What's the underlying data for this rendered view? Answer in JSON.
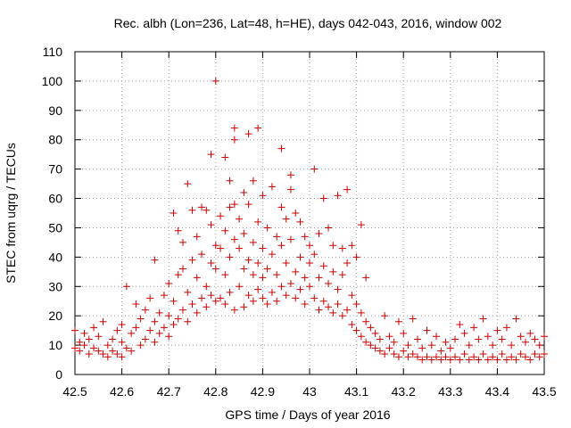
{
  "chart_data": {
    "type": "scatter",
    "title": "Rec. albh (Lon=236, Lat=48, h=HE), days 042-043, 2016, window 002",
    "xlabel": "GPS time / Days of year 2016",
    "ylabel": "STEC from uqrg / TECUs",
    "xlim": [
      42.5,
      43.5
    ],
    "ylim": [
      0,
      110
    ],
    "grid": true,
    "marker": "+",
    "series_color": "#cc0000",
    "x_ticks": [
      42.5,
      42.6,
      42.7,
      42.8,
      42.9,
      43,
      43.1,
      43.2,
      43.3,
      43.4,
      43.5
    ],
    "x_tick_labels": [
      "42.5",
      "42.6",
      "42.7",
      "42.8",
      "42.9",
      "43",
      "43.1",
      "43.2",
      "43.3",
      "43.4",
      "43.5"
    ],
    "y_ticks": [
      0,
      10,
      20,
      30,
      40,
      50,
      60,
      70,
      80,
      90,
      100,
      110
    ],
    "y_tick_labels": [
      "0",
      "10",
      "20",
      "30",
      "40",
      "50",
      "60",
      "70",
      "80",
      "90",
      "100",
      "110"
    ],
    "points": [
      [
        42.5,
        9
      ],
      [
        42.5,
        15
      ],
      [
        42.51,
        8
      ],
      [
        42.51,
        11
      ],
      [
        42.52,
        10
      ],
      [
        42.52,
        14
      ],
      [
        42.53,
        7
      ],
      [
        42.53,
        12
      ],
      [
        42.54,
        9
      ],
      [
        42.54,
        16
      ],
      [
        42.55,
        8
      ],
      [
        42.55,
        13
      ],
      [
        42.56,
        7
      ],
      [
        42.56,
        18
      ],
      [
        42.57,
        10
      ],
      [
        42.57,
        6
      ],
      [
        42.58,
        12
      ],
      [
        42.58,
        8
      ],
      [
        42.59,
        15
      ],
      [
        42.59,
        7
      ],
      [
        42.6,
        6
      ],
      [
        42.6,
        11
      ],
      [
        42.6,
        17
      ],
      [
        42.61,
        9
      ],
      [
        42.61,
        30
      ],
      [
        42.62,
        14
      ],
      [
        42.62,
        8
      ],
      [
        42.63,
        16
      ],
      [
        42.63,
        24
      ],
      [
        42.64,
        10
      ],
      [
        42.64,
        19
      ],
      [
        42.65,
        12
      ],
      [
        42.65,
        22
      ],
      [
        42.66,
        15
      ],
      [
        42.66,
        26
      ],
      [
        42.67,
        11
      ],
      [
        42.67,
        18
      ],
      [
        42.67,
        39
      ],
      [
        42.68,
        14
      ],
      [
        42.68,
        21
      ],
      [
        42.69,
        16
      ],
      [
        42.69,
        27
      ],
      [
        42.7,
        13
      ],
      [
        42.7,
        20
      ],
      [
        42.7,
        31
      ],
      [
        42.71,
        17
      ],
      [
        42.71,
        25
      ],
      [
        42.71,
        55
      ],
      [
        42.72,
        19
      ],
      [
        42.72,
        34
      ],
      [
        42.72,
        49
      ],
      [
        42.73,
        22
      ],
      [
        42.73,
        36
      ],
      [
        42.73,
        45
      ],
      [
        42.74,
        18
      ],
      [
        42.74,
        28
      ],
      [
        42.74,
        65
      ],
      [
        42.75,
        24
      ],
      [
        42.75,
        39
      ],
      [
        42.75,
        56
      ],
      [
        42.76,
        21
      ],
      [
        42.76,
        33
      ],
      [
        42.76,
        47
      ],
      [
        42.77,
        26
      ],
      [
        42.77,
        41
      ],
      [
        42.77,
        57
      ],
      [
        42.78,
        23
      ],
      [
        42.78,
        30
      ],
      [
        42.78,
        56
      ],
      [
        42.79,
        27
      ],
      [
        42.79,
        38
      ],
      [
        42.79,
        51
      ],
      [
        42.79,
        75
      ],
      [
        42.8,
        25
      ],
      [
        42.8,
        36
      ],
      [
        42.8,
        44
      ],
      [
        42.8,
        100
      ],
      [
        42.81,
        26
      ],
      [
        42.81,
        43
      ],
      [
        42.81,
        54
      ],
      [
        42.82,
        24
      ],
      [
        42.82,
        34
      ],
      [
        42.82,
        49
      ],
      [
        42.82,
        74
      ],
      [
        42.83,
        28
      ],
      [
        42.83,
        40
      ],
      [
        42.83,
        57
      ],
      [
        42.83,
        66
      ],
      [
        42.84,
        22
      ],
      [
        42.84,
        46
      ],
      [
        42.84,
        58
      ],
      [
        42.84,
        84
      ],
      [
        42.84,
        80
      ],
      [
        42.85,
        30
      ],
      [
        42.85,
        43
      ],
      [
        42.85,
        53
      ],
      [
        42.86,
        23
      ],
      [
        42.86,
        36
      ],
      [
        42.86,
        48
      ],
      [
        42.86,
        62
      ],
      [
        42.87,
        27
      ],
      [
        42.87,
        39
      ],
      [
        42.87,
        58
      ],
      [
        42.87,
        82
      ],
      [
        42.88,
        25
      ],
      [
        42.88,
        34
      ],
      [
        42.88,
        45
      ],
      [
        42.88,
        66
      ],
      [
        42.89,
        29
      ],
      [
        42.89,
        38
      ],
      [
        42.89,
        52
      ],
      [
        42.89,
        84
      ],
      [
        42.9,
        26
      ],
      [
        42.9,
        33
      ],
      [
        42.9,
        43
      ],
      [
        42.9,
        61
      ],
      [
        42.91,
        24
      ],
      [
        42.91,
        36
      ],
      [
        42.91,
        50
      ],
      [
        42.92,
        28
      ],
      [
        42.92,
        41
      ],
      [
        42.92,
        64
      ],
      [
        42.93,
        25
      ],
      [
        42.93,
        34
      ],
      [
        42.93,
        47
      ],
      [
        42.94,
        30
      ],
      [
        42.94,
        44
      ],
      [
        42.94,
        57
      ],
      [
        42.94,
        77
      ],
      [
        42.95,
        27
      ],
      [
        42.95,
        38
      ],
      [
        42.95,
        53
      ],
      [
        42.96,
        31
      ],
      [
        42.96,
        46
      ],
      [
        42.96,
        63
      ],
      [
        42.96,
        68
      ],
      [
        42.97,
        26
      ],
      [
        42.97,
        35
      ],
      [
        42.97,
        55
      ],
      [
        42.98,
        29
      ],
      [
        42.98,
        40
      ],
      [
        42.98,
        52
      ],
      [
        42.99,
        24
      ],
      [
        42.99,
        33
      ],
      [
        42.99,
        47
      ],
      [
        43.0,
        30
      ],
      [
        43.0,
        38
      ],
      [
        43.0,
        44
      ],
      [
        43.01,
        26
      ],
      [
        43.01,
        41
      ],
      [
        43.01,
        70
      ],
      [
        43.02,
        22
      ],
      [
        43.02,
        33
      ],
      [
        43.02,
        48
      ],
      [
        43.03,
        25
      ],
      [
        43.03,
        37
      ],
      [
        43.03,
        60
      ],
      [
        43.04,
        23
      ],
      [
        43.04,
        31
      ],
      [
        43.04,
        50
      ],
      [
        43.05,
        21
      ],
      [
        43.05,
        35
      ],
      [
        43.05,
        44
      ],
      [
        43.06,
        24
      ],
      [
        43.06,
        29
      ],
      [
        43.06,
        61
      ],
      [
        43.07,
        20
      ],
      [
        43.07,
        34
      ],
      [
        43.07,
        43
      ],
      [
        43.08,
        22
      ],
      [
        43.08,
        38
      ],
      [
        43.08,
        63
      ],
      [
        43.09,
        17
      ],
      [
        43.09,
        27
      ],
      [
        43.09,
        44
      ],
      [
        43.1,
        15
      ],
      [
        43.1,
        24
      ],
      [
        43.1,
        40
      ],
      [
        43.11,
        13
      ],
      [
        43.11,
        21
      ],
      [
        43.11,
        51
      ],
      [
        43.12,
        11
      ],
      [
        43.12,
        18
      ],
      [
        43.12,
        33
      ],
      [
        43.13,
        10
      ],
      [
        43.13,
        16
      ],
      [
        43.14,
        9
      ],
      [
        43.14,
        14
      ],
      [
        43.15,
        8
      ],
      [
        43.15,
        12
      ],
      [
        43.16,
        7
      ],
      [
        43.16,
        20
      ],
      [
        43.17,
        9
      ],
      [
        43.17,
        13
      ],
      [
        43.18,
        7
      ],
      [
        43.18,
        11
      ],
      [
        43.19,
        6
      ],
      [
        43.19,
        18
      ],
      [
        43.2,
        8
      ],
      [
        43.2,
        14
      ],
      [
        43.21,
        6
      ],
      [
        43.21,
        10
      ],
      [
        43.22,
        7
      ],
      [
        43.22,
        19
      ],
      [
        43.23,
        6
      ],
      [
        43.23,
        12
      ],
      [
        43.24,
        5
      ],
      [
        43.24,
        9
      ],
      [
        43.25,
        6
      ],
      [
        43.25,
        15
      ],
      [
        43.26,
        5
      ],
      [
        43.26,
        10
      ],
      [
        43.27,
        6
      ],
      [
        43.27,
        13
      ],
      [
        43.28,
        5
      ],
      [
        43.28,
        8
      ],
      [
        43.29,
        6
      ],
      [
        43.29,
        11
      ],
      [
        43.3,
        5
      ],
      [
        43.3,
        9
      ],
      [
        43.31,
        6
      ],
      [
        43.31,
        12
      ],
      [
        43.32,
        5
      ],
      [
        43.32,
        17
      ],
      [
        43.33,
        7
      ],
      [
        43.33,
        14
      ],
      [
        43.34,
        5
      ],
      [
        43.34,
        10
      ],
      [
        43.35,
        6
      ],
      [
        43.35,
        16
      ],
      [
        43.36,
        5
      ],
      [
        43.36,
        12
      ],
      [
        43.37,
        7
      ],
      [
        43.37,
        19
      ],
      [
        43.38,
        5
      ],
      [
        43.38,
        13
      ],
      [
        43.39,
        6
      ],
      [
        43.39,
        10
      ],
      [
        43.4,
        5
      ],
      [
        43.4,
        15
      ],
      [
        43.41,
        7
      ],
      [
        43.41,
        12
      ],
      [
        43.42,
        5
      ],
      [
        43.42,
        16
      ],
      [
        43.43,
        6
      ],
      [
        43.43,
        10
      ],
      [
        43.44,
        5
      ],
      [
        43.44,
        19
      ],
      [
        43.45,
        7
      ],
      [
        43.45,
        13
      ],
      [
        43.46,
        6
      ],
      [
        43.46,
        11
      ],
      [
        43.47,
        5
      ],
      [
        43.47,
        14
      ],
      [
        43.48,
        7
      ],
      [
        43.48,
        12
      ],
      [
        43.49,
        6
      ],
      [
        43.49,
        10
      ],
      [
        43.5,
        7
      ],
      [
        43.5,
        13
      ]
    ]
  }
}
